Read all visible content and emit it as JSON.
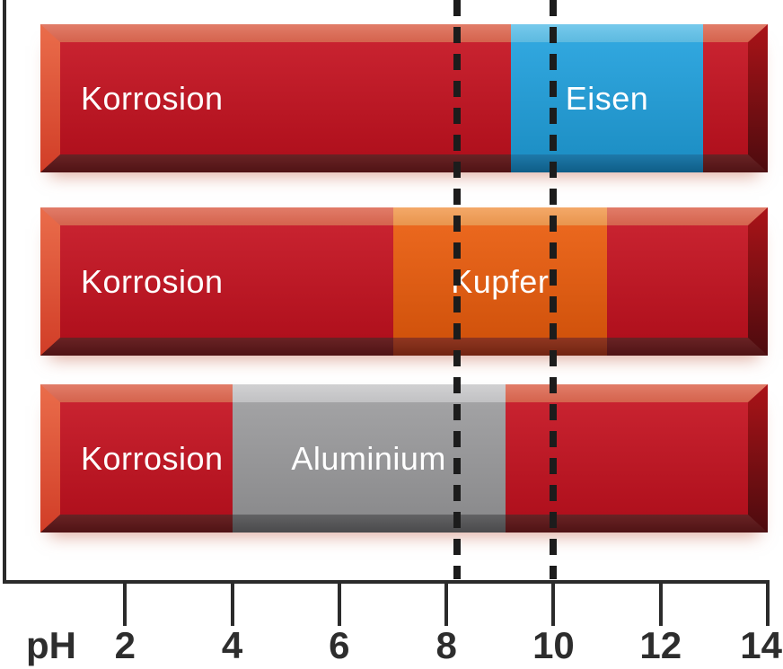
{
  "chart_data": {
    "type": "bar",
    "subtype": "horizontal-ph-range-chart",
    "title": "",
    "axis": {
      "label": "pH",
      "min": 0,
      "max": 14,
      "tick_values": [
        2,
        4,
        6,
        8,
        10,
        12,
        14
      ]
    },
    "bars": [
      {
        "corrosion_label": "Korrosion",
        "metal_label": "Eisen",
        "safe_ph_from": 9.2,
        "safe_ph_to": 12.8,
        "colors": {
          "top": "#60c1e9",
          "body": "#21a0dc",
          "bottom": "#1272a5"
        }
      },
      {
        "corrosion_label": "Korrosion",
        "metal_label": "Kupfer",
        "safe_ph_from": 7.0,
        "safe_ph_to": 11.0,
        "colors": {
          "top": "#f29b50",
          "body": "#e95c0d",
          "bottom": "#8a2c15"
        }
      },
      {
        "corrosion_label": "Korrosion",
        "metal_label": "Aluminium",
        "safe_ph_from": 4.0,
        "safe_ph_to": 9.1,
        "colors": {
          "top": "#c9c9cb",
          "body": "#9b9b9d",
          "bottom": "#5a5a5c"
        }
      }
    ],
    "reference_lines": [
      {
        "ph": 8.2
      },
      {
        "ph": 10.0
      }
    ],
    "styles": {
      "corrosion": {
        "top": "#dd6750",
        "body": "#c41220",
        "bottom": "#611719",
        "bevel_left": [
          "#ea6d4b",
          "#d13d27"
        ],
        "bevel_right": [
          "#ab1318",
          "#4c0b0e"
        ]
      },
      "dash_color": "#1c1c1c",
      "axis_color": "#2b2b2b",
      "tick_label_color": "#2d2d2d",
      "bar_text_color": "#ffffff",
      "background": "#ffffff"
    }
  }
}
